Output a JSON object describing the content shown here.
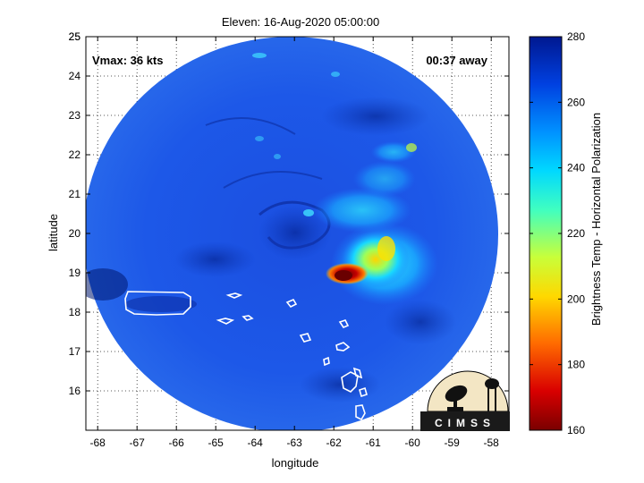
{
  "title": "Eleven: 16-Aug-2020 05:00:00",
  "vmax_label": "Vmax: 36 kts",
  "time_label": "00:37 away",
  "xlabel": "longitude",
  "ylabel": "latitude",
  "colorbar": {
    "label": "Brightness Temp - Horizontal Polarization",
    "min": 160,
    "max": 280,
    "ticks": [
      "160",
      "180",
      "200",
      "220",
      "240",
      "260",
      "280"
    ],
    "colormap": [
      "#7a0000",
      "#d90000",
      "#ff6a00",
      "#ffd800",
      "#c8ff3a",
      "#40ffc0",
      "#00d8ff",
      "#0090ff",
      "#0040e0",
      "#001890"
    ]
  },
  "x_axis": {
    "ticks": [
      "-68",
      "-67",
      "-66",
      "-65",
      "-64",
      "-63",
      "-62",
      "-61",
      "-60",
      "-59",
      "-58"
    ]
  },
  "y_axis": {
    "ticks": [
      "16",
      "17",
      "18",
      "19",
      "20",
      "21",
      "22",
      "23",
      "24",
      "25"
    ]
  },
  "map": {
    "lon_range": [
      -68.3,
      -57.55
    ],
    "lat_range": [
      15,
      25
    ],
    "swath_fill": "#1f5be6",
    "grid": "dotted",
    "storm_center": {
      "lon": -62.7,
      "lat": 19.9
    }
  },
  "logo": {
    "text": "CIMSS"
  }
}
